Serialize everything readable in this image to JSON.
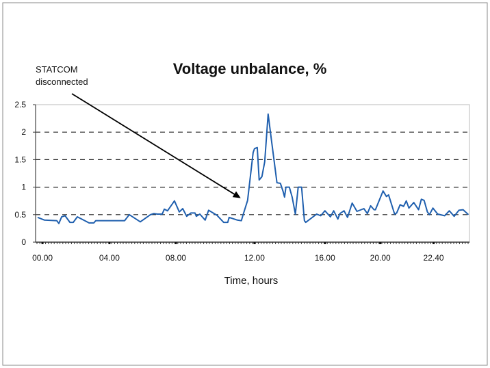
{
  "chart_data": {
    "type": "line",
    "title": "Voltage unbalance, %",
    "xlabel": "Time, hours",
    "ylabel": "",
    "ylim": [
      0,
      2.5
    ],
    "xlim": [
      -0.4,
      24.75
    ],
    "grid": "horizontal dashed",
    "y_ticks": [
      {
        "label": "0",
        "value": 0
      },
      {
        "label": "0.5",
        "value": 0.5
      },
      {
        "label": "1",
        "value": 1
      },
      {
        "label": "1.5",
        "value": 1.5
      },
      {
        "label": "2",
        "value": 2
      },
      {
        "label": "2.5",
        "value": 2.5
      }
    ],
    "x_ticks": [
      {
        "label": "00.00",
        "value": 0
      },
      {
        "label": "04.00",
        "value": 3.88
      },
      {
        "label": "08.00",
        "value": 7.73
      },
      {
        "label": "12.00",
        "value": 12.29
      },
      {
        "label": "16.00",
        "value": 16.37
      },
      {
        "label": "20.00",
        "value": 19.58
      },
      {
        "label": "22.40",
        "value": 22.67
      }
    ],
    "annotation": {
      "text_line1": "STATCOM",
      "text_line2": "disconnected",
      "points_to": [
        11.49,
        0.8
      ]
    },
    "series": [
      {
        "name": "Voltage unbalance",
        "color": "#1f5fae",
        "x": [
          -0.28,
          0.12,
          0.83,
          0.95,
          1.11,
          1.31,
          1.59,
          1.78,
          2.02,
          2.7,
          2.97,
          3.09,
          4.76,
          5.03,
          5.67,
          6.26,
          6.46,
          6.66,
          6.94,
          7.06,
          7.25,
          7.65,
          7.93,
          8.13,
          8.36,
          8.6,
          8.84,
          8.92,
          9.12,
          9.43,
          9.63,
          10.11,
          10.5,
          10.74,
          10.82,
          11.3,
          11.53,
          11.61,
          11.89,
          12.21,
          12.29,
          12.45,
          12.56,
          12.72,
          12.88,
          13.08,
          13.28,
          13.59,
          13.79,
          13.95,
          14.03,
          14.11,
          14.31,
          14.47,
          14.66,
          14.82,
          15.02,
          15.18,
          15.26,
          15.89,
          16.13,
          16.37,
          16.69,
          16.88,
          17.12,
          17.24,
          17.48,
          17.68,
          17.95,
          18.23,
          18.63,
          18.83,
          19.02,
          19.22,
          19.3,
          19.74,
          19.94,
          20.06,
          20.41,
          20.53,
          20.73,
          20.93,
          21.09,
          21.24,
          21.52,
          21.8,
          21.96,
          22.12,
          22.31,
          22.43,
          22.63,
          22.91,
          23.31,
          23.58,
          23.86,
          24.14,
          24.38,
          24.69
        ],
        "values": [
          0.45,
          0.4,
          0.39,
          0.34,
          0.46,
          0.48,
          0.36,
          0.36,
          0.46,
          0.35,
          0.35,
          0.39,
          0.39,
          0.5,
          0.37,
          0.5,
          0.52,
          0.51,
          0.51,
          0.6,
          0.57,
          0.75,
          0.55,
          0.61,
          0.47,
          0.53,
          0.53,
          0.47,
          0.51,
          0.4,
          0.58,
          0.49,
          0.36,
          0.36,
          0.45,
          0.4,
          0.39,
          0.48,
          0.76,
          1.63,
          1.7,
          1.72,
          1.13,
          1.19,
          1.46,
          2.33,
          1.83,
          1.08,
          1.07,
          0.92,
          0.82,
          1.0,
          1.0,
          0.82,
          0.51,
          1.0,
          1.0,
          0.39,
          0.36,
          0.51,
          0.48,
          0.57,
          0.46,
          0.57,
          0.42,
          0.52,
          0.57,
          0.45,
          0.71,
          0.56,
          0.61,
          0.52,
          0.66,
          0.59,
          0.59,
          0.93,
          0.83,
          0.86,
          0.51,
          0.53,
          0.68,
          0.65,
          0.75,
          0.62,
          0.72,
          0.59,
          0.78,
          0.76,
          0.55,
          0.5,
          0.62,
          0.51,
          0.48,
          0.57,
          0.47,
          0.58,
          0.59,
          0.5
        ]
      }
    ]
  }
}
